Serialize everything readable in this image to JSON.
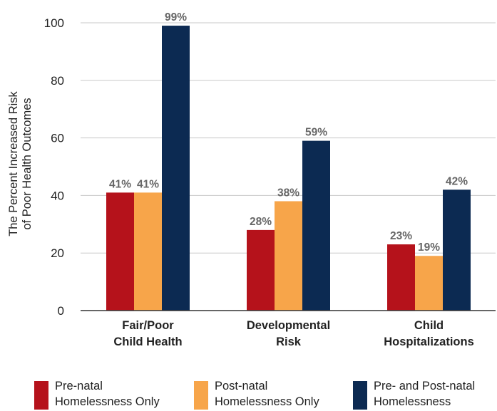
{
  "chart_data": {
    "type": "bar",
    "title": "",
    "xlabel": "",
    "ylabel": "The Percent Increased Risk\nof Poor Health Outcomes",
    "ylim": [
      0,
      100
    ],
    "yticks": [
      0,
      20,
      40,
      60,
      80,
      100
    ],
    "ytick_labels": [
      "0",
      "20",
      "40",
      "60",
      "80",
      "100"
    ],
    "categories": [
      "Fair/Poor\nChild Health",
      "Developmental\nRisk",
      "Child\nHospitalizations"
    ],
    "series": [
      {
        "name": "Pre-natal\nHomelessness Only",
        "color": "#b5121b",
        "values": [
          41,
          28,
          23
        ],
        "labels": [
          "41%",
          "28%",
          "23%"
        ]
      },
      {
        "name": "Post-natal\nHomelessness Only",
        "color": "#f7a54a",
        "values": [
          41,
          38,
          19
        ],
        "labels": [
          "41%",
          "38%",
          "19%"
        ]
      },
      {
        "name": "Pre- and Post-natal\nHomelessness",
        "color": "#0c2a52",
        "values": [
          99,
          59,
          42
        ],
        "labels": [
          "99%",
          "59%",
          "42%"
        ]
      }
    ],
    "grid": true,
    "legend_position": "bottom",
    "data_label_color": "#666666"
  }
}
